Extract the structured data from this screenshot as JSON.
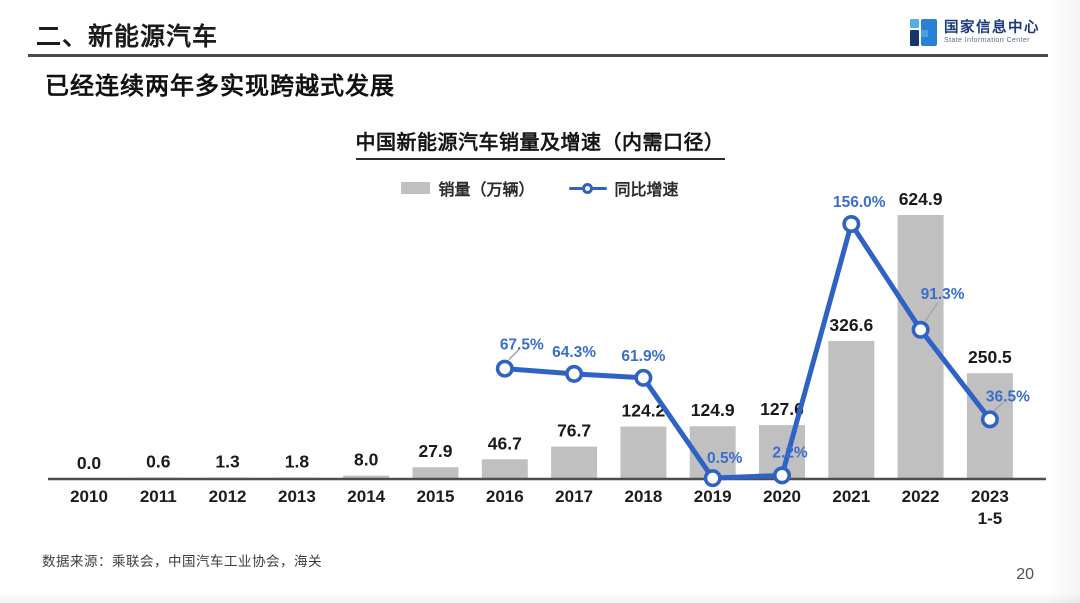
{
  "header": {
    "section_title": "二、新能源汽车",
    "subtitle": "已经连续两年多实现跨越式发展",
    "logo": {
      "name_cn": "国家信息中心",
      "name_en": "State Information Center"
    }
  },
  "chart": {
    "title": "中国新能源汽车销量及增速（内需口径）",
    "legend": [
      {
        "label": "销量（万辆）",
        "type": "bar"
      },
      {
        "label": "同比增速",
        "type": "line"
      }
    ]
  },
  "chart_data": {
    "type": "bar+line",
    "title": "中国新能源汽车销量及增速（内需口径）",
    "categories": [
      "2010",
      "2011",
      "2012",
      "2013",
      "2014",
      "2015",
      "2016",
      "2017",
      "2018",
      "2019",
      "2020",
      "2021",
      "2022",
      "2023\n1-5"
    ],
    "series": [
      {
        "name": "销量（万辆）",
        "type": "bar",
        "axis": "left",
        "color": "#c0c0c0",
        "values": [
          0.0,
          0.6,
          1.3,
          1.8,
          8.0,
          27.9,
          46.7,
          76.7,
          124.2,
          124.9,
          127.6,
          326.6,
          624.9,
          250.5
        ],
        "labels": [
          "0.0",
          "0.6",
          "1.3",
          "1.8",
          "8.0",
          "27.9",
          "46.7",
          "76.7",
          "124.2",
          "124.9",
          "127.6",
          "326.6",
          "624.9",
          "250.5"
        ]
      },
      {
        "name": "同比增速",
        "type": "line",
        "axis": "right",
        "unit": "%",
        "color": "#2f62c4",
        "values": [
          null,
          null,
          null,
          null,
          null,
          null,
          67.5,
          64.3,
          61.9,
          0.5,
          2.2,
          156.0,
          91.3,
          36.5
        ],
        "labels": [
          null,
          null,
          null,
          null,
          null,
          null,
          "67.5%",
          "64.3%",
          "61.9%",
          "0.5%",
          "2.2%",
          "156.0%",
          "91.3%",
          "36.5%"
        ]
      }
    ],
    "left_axis_range": [
      0,
      700
    ],
    "right_axis_range": [
      0,
      172
    ],
    "gridlines": false,
    "value_axes_visible": false,
    "legend_position": "top",
    "colors": {
      "bar": "#c0c0c0",
      "line": "#2f62c4",
      "bar_label": "#1a1a1a",
      "line_label": "#3a6dcc",
      "axis_line": "#4d4d4d"
    }
  },
  "footer": {
    "source": "数据来源：乘联会，中国汽车工业协会，海关",
    "page_number": "20"
  }
}
